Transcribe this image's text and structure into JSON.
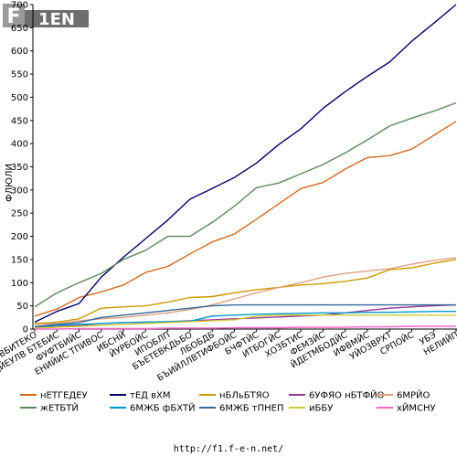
{
  "chart_data": {
    "type": "line",
    "title": "",
    "xlabel": "",
    "ylabel": "ФЛЮЛИ",
    "ylim": [
      0,
      700
    ],
    "yticks": [
      0,
      50,
      100,
      150,
      200,
      250,
      300,
      350,
      400,
      450,
      500,
      550,
      600,
      650,
      700
    ],
    "grid": false,
    "legend_position": "bottom",
    "categories": [
      "ВБИТЕКО",
      "ДЙЕУЛВ БТЕБИС",
      "ФУФТБИЙС",
      "ЕНИЙИС ТПИВОС",
      "ИБСНЙ",
      "ЙУРБОЙС",
      "ИПОБЛП",
      "БЪЕТЕВКДЬБО",
      "ЛБОБДБ",
      "БЪИЙЛЛВТИФБОЙС",
      "БЧФТЙС",
      "ИТБОГЙС",
      "ХОЗБТИС",
      "ФЕМЗЙС",
      "ЙДЕТМБОДЙС",
      "ИФВМЙС",
      "УЙОЗВРХТ",
      "СРПОЙС",
      "УБЭ",
      "НЕЛИЙП"
    ],
    "series": [
      {
        "name": "нЕТГЕДЕУ",
        "color": "#d2691e",
        "values": [
          28,
          43,
          68,
          80,
          95,
          122,
          135,
          162,
          188,
          205,
          237,
          270,
          303,
          316,
          345,
          370,
          374,
          388,
          418,
          448
        ]
      },
      {
        "name": "тЕД вХМ",
        "color": "#000066",
        "values": [
          15,
          38,
          55,
          112,
          155,
          195,
          235,
          280,
          303,
          327,
          358,
          398,
          432,
          476,
          512,
          545,
          576,
          621,
          660,
          700
        ]
      },
      {
        "name": "нБЛьБТЯО",
        "color": "#cc9900",
        "values": [
          12,
          15,
          22,
          45,
          48,
          50,
          58,
          68,
          70,
          78,
          85,
          90,
          95,
          98,
          103,
          110,
          128,
          132,
          142,
          150
        ]
      },
      {
        "name": "6УФЯО нБТФЙО",
        "color": "#993399",
        "values": [
          3,
          5,
          8,
          12,
          14,
          15,
          16,
          18,
          20,
          22,
          24,
          26,
          28,
          30,
          35,
          40,
          45,
          48,
          50,
          52
        ]
      },
      {
        "name": "6МРЙО",
        "color": "#e0a080",
        "values": [
          10,
          12,
          18,
          22,
          25,
          30,
          35,
          42,
          52,
          65,
          78,
          90,
          100,
          112,
          120,
          125,
          130,
          140,
          148,
          154
        ]
      },
      {
        "name": "жЕТБТЙ",
        "color": "#5a8a5a",
        "values": [
          48,
          78,
          100,
          120,
          150,
          170,
          200,
          200,
          230,
          265,
          305,
          315,
          335,
          355,
          380,
          408,
          438,
          455,
          470,
          488
        ]
      },
      {
        "name": "6МЖБ фБХТЙ",
        "color": "#0099cc",
        "values": [
          5,
          8,
          10,
          12,
          14,
          15,
          16,
          17,
          28,
          30,
          32,
          33,
          34,
          35,
          35,
          36,
          36,
          37,
          38,
          38
        ]
      },
      {
        "name": "6МЖБ тПНЕП",
        "color": "#336699",
        "values": [
          5,
          10,
          14,
          25,
          30,
          35,
          40,
          45,
          50,
          52,
          52,
          52,
          52,
          52,
          52,
          52,
          52,
          52,
          52,
          52
        ]
      },
      {
        "name": "иББУ",
        "color": "#cccc33",
        "values": [
          2,
          4,
          6,
          8,
          10,
          12,
          14,
          16,
          18,
          20,
          28,
          30,
          30,
          30,
          30,
          30,
          30,
          30,
          30,
          30
        ]
      },
      {
        "name": "хЙМСНУ",
        "color": "#ff66cc",
        "values": [
          0,
          0,
          1,
          1,
          1,
          1,
          2,
          2,
          2,
          3,
          3,
          3,
          4,
          4,
          4,
          5,
          5,
          6,
          6,
          6
        ]
      }
    ]
  },
  "logo": {
    "text_f": "F",
    "text_rest": "1EN"
  },
  "footer": {
    "url": "http://f1.f-e-n.net/"
  }
}
